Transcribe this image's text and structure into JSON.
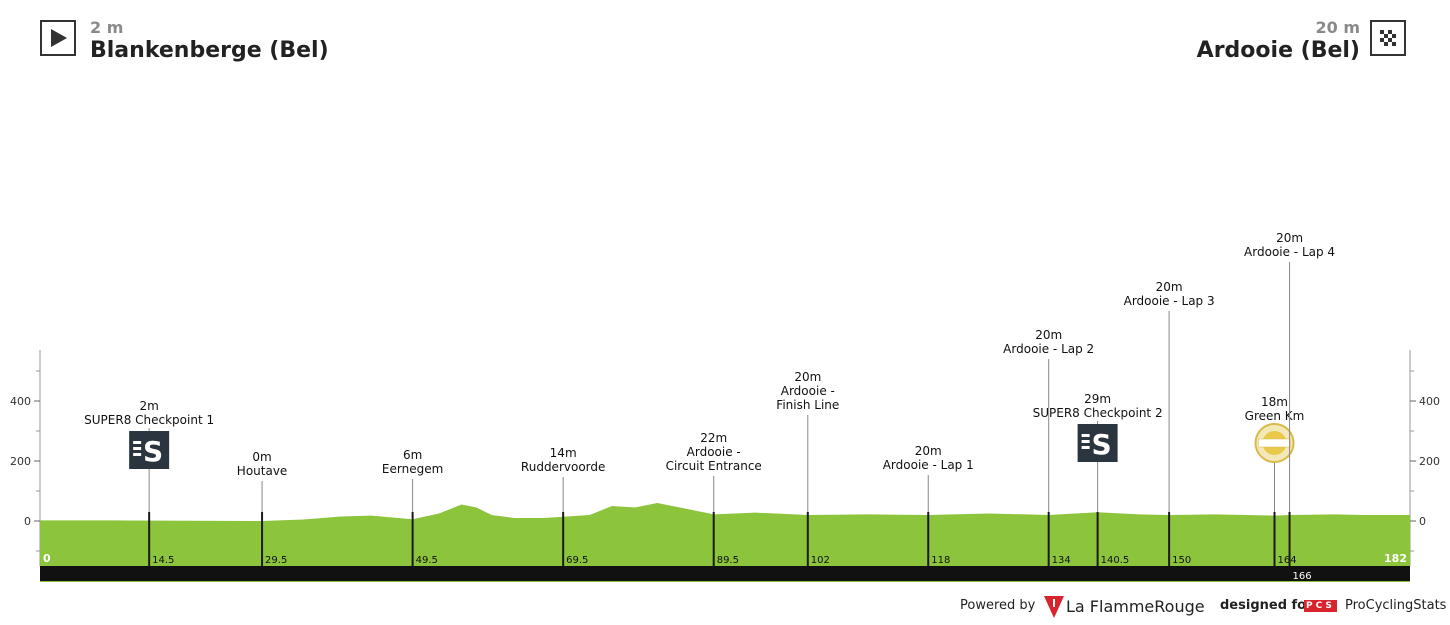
{
  "header": {
    "start": {
      "altitude": "2 m",
      "name": "Blankenberge (Bel)",
      "icon": "play-icon"
    },
    "finish": {
      "altitude": "20 m",
      "name": "Ardooie (Bel)",
      "icon": "checkered-flag-icon"
    }
  },
  "chart_data": {
    "type": "area",
    "title": "",
    "xlabel": "",
    "ylabel": "",
    "xlim": [
      0,
      182
    ],
    "ylim": [
      -200,
      600
    ],
    "yticks": [
      0,
      200,
      400
    ],
    "ytick_labels": [
      "0",
      "200",
      "400"
    ],
    "grid": false,
    "fill_color": "#8cc43c",
    "base_color": "#111111",
    "profile": {
      "x": [
        0,
        10,
        20,
        29.5,
        35,
        40,
        44,
        49.5,
        53,
        56,
        58,
        60,
        63,
        67,
        69.5,
        73,
        76,
        79,
        82,
        86,
        89.5,
        95,
        102,
        110,
        118,
        126,
        134,
        140.5,
        146,
        150,
        156,
        164,
        166,
        172,
        176,
        182
      ],
      "y": [
        2,
        2,
        1,
        0,
        5,
        15,
        18,
        6,
        25,
        55,
        45,
        20,
        10,
        10,
        14,
        20,
        50,
        45,
        60,
        40,
        22,
        28,
        20,
        22,
        20,
        25,
        20,
        29,
        22,
        20,
        22,
        18,
        20,
        22,
        20,
        20
      ]
    },
    "points": [
      {
        "km": 14.5,
        "km_label": "14.5",
        "alt": "2m",
        "name": "SUPER8 Checkpoint 1",
        "icon": "sprint-s-icon"
      },
      {
        "km": 29.5,
        "km_label": "29.5",
        "alt": "0m",
        "name": "Houtave"
      },
      {
        "km": 49.5,
        "km_label": "49.5",
        "alt": "6m",
        "name": "Eernegem"
      },
      {
        "km": 69.5,
        "km_label": "69.5",
        "alt": "14m",
        "name": "Ruddervoorde"
      },
      {
        "km": 89.5,
        "km_label": "89.5",
        "alt": "22m",
        "name": "Ardooie -\nCircuit Entrance"
      },
      {
        "km": 102,
        "km_label": "102",
        "alt": "20m",
        "name": "Ardooie -\nFinish Line"
      },
      {
        "km": 118,
        "km_label": "118",
        "alt": "20m",
        "name": "Ardooie - Lap 1"
      },
      {
        "km": 134,
        "km_label": "134",
        "alt": "20m",
        "name": "Ardooie - Lap 2"
      },
      {
        "km": 140.5,
        "km_label": "140.5",
        "alt": "29m",
        "name": "SUPER8 Checkpoint 2",
        "icon": "sprint-s-icon"
      },
      {
        "km": 150,
        "km_label": "150",
        "alt": "20m",
        "name": "Ardooie - Lap 3"
      },
      {
        "km": 164,
        "km_label": "164",
        "alt": "18m",
        "name": "Green Km",
        "icon": "golden-km-badge-icon"
      },
      {
        "km": 166,
        "km_label": "166",
        "alt": "20m",
        "name": "Ardooie - Lap 4"
      }
    ],
    "start_km_label": "0",
    "end_km_label": "182"
  },
  "footer": {
    "powered_by": "Powered by",
    "lfr_brand": "La FlammeRouge",
    "designed_for": "designed for",
    "pcs_badge": "PCS",
    "pcs_brand": "ProCyclingStats"
  }
}
